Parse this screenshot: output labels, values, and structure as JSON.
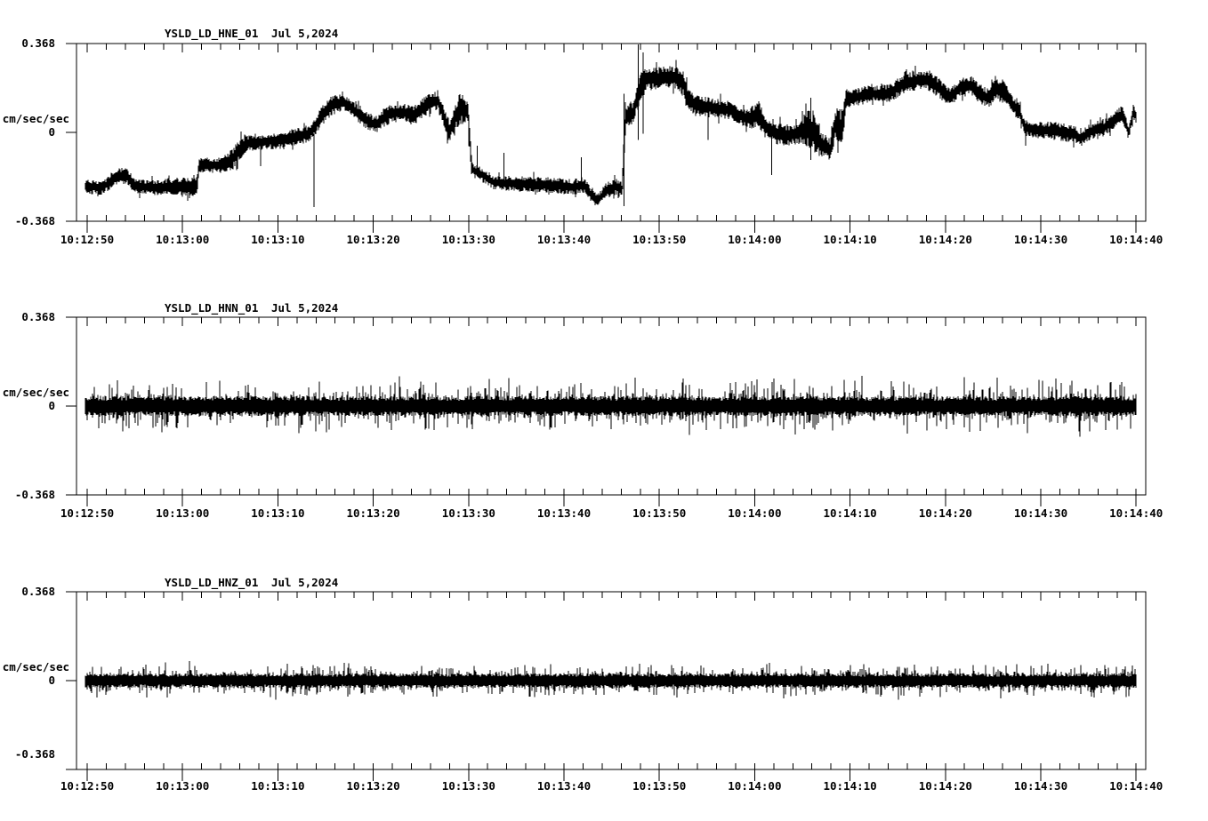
{
  "page": {
    "background": "#ffffff",
    "foreground": "#000000"
  },
  "panels": [
    {
      "station": "YSLD_LD_HNE_01",
      "date": "Jul 5,2024",
      "y_axis": {
        "label": "cm/sec/sec",
        "max_label": "0.368",
        "zero_label": "0",
        "min_label": "-0.368"
      },
      "x_ticks": [
        "10:12:50",
        "10:13:00",
        "10:13:10",
        "10:13:20",
        "10:13:30",
        "10:13:40",
        "10:13:50",
        "10:14:00",
        "10:14:10",
        "10:14:20",
        "10:14:30",
        "10:14:40"
      ]
    },
    {
      "station": "YSLD_LD_HNN_01",
      "date": "Jul 5,2024",
      "y_axis": {
        "label": "cm/sec/sec",
        "max_label": "0.368",
        "zero_label": "0",
        "min_label": "-0.368"
      },
      "x_ticks": [
        "10:12:50",
        "10:13:00",
        "10:13:10",
        "10:13:20",
        "10:13:30",
        "10:13:40",
        "10:13:50",
        "10:14:00",
        "10:14:10",
        "10:14:20",
        "10:14:30",
        "10:14:40"
      ]
    },
    {
      "station": "YSLD_LD_HNZ_01",
      "date": "Jul 5,2024",
      "y_axis": {
        "label": "cm/sec/sec",
        "max_label": "0.368",
        "zero_label": "0",
        "min_label": "-0.368"
      },
      "x_ticks": [
        "10:12:50",
        "10:13:00",
        "10:13:10",
        "10:13:20",
        "10:13:30",
        "10:13:40",
        "10:13:50",
        "10:14:00",
        "10:14:10",
        "10:14:20",
        "10:14:30",
        "10:14:40"
      ]
    }
  ],
  "chart_data": [
    {
      "type": "line",
      "subtype": "seismogram-acceleration",
      "title": "YSLD_LD_HNE_01",
      "date": "Jul 5,2024",
      "ylabel": "cm/sec/sec",
      "units": "cm/sec/sec",
      "ylim": [
        -0.368,
        0.368
      ],
      "x_start_label": "10:12:50",
      "x_end_label": "10:14:40",
      "x_duration_s": 110,
      "x_major_tick_s": 10,
      "x_minor_tick_s": 2,
      "x_tick_labels": [
        "10:12:50",
        "10:13:00",
        "10:13:10",
        "10:13:20",
        "10:13:30",
        "10:13:40",
        "10:13:50",
        "10:14:00",
        "10:14:10",
        "10:14:20",
        "10:14:30",
        "10:14:40"
      ],
      "envelope": [
        [
          -0.2,
          -0.223,
          0.033
        ],
        [
          1.6,
          -0.23,
          0.029
        ],
        [
          3.0,
          -0.183,
          0.036
        ],
        [
          4.1,
          -0.176,
          0.036
        ],
        [
          5.0,
          -0.223,
          0.029
        ],
        [
          6.9,
          -0.23,
          0.033
        ],
        [
          9.0,
          -0.227,
          0.036
        ],
        [
          10.9,
          -0.223,
          0.047
        ],
        [
          11.5,
          -0.216,
          0.044
        ],
        [
          11.7,
          -0.136,
          0.029
        ],
        [
          14.2,
          -0.136,
          0.033
        ],
        [
          15.3,
          -0.107,
          0.044
        ],
        [
          16.2,
          -0.06,
          0.044
        ],
        [
          17.2,
          -0.042,
          0.036
        ],
        [
          18.8,
          -0.038,
          0.033
        ],
        [
          20.7,
          -0.031,
          0.036
        ],
        [
          22.1,
          -0.016,
          0.036
        ],
        [
          23.3,
          -0.005,
          0.036
        ],
        [
          24.6,
          0.067,
          0.044
        ],
        [
          25.8,
          0.118,
          0.04
        ],
        [
          26.9,
          0.125,
          0.036
        ],
        [
          28.0,
          0.092,
          0.036
        ],
        [
          29.1,
          0.056,
          0.036
        ],
        [
          30.2,
          0.031,
          0.036
        ],
        [
          31.5,
          0.074,
          0.044
        ],
        [
          33.0,
          0.085,
          0.036
        ],
        [
          34.3,
          0.071,
          0.044
        ],
        [
          35.7,
          0.118,
          0.044
        ],
        [
          36.8,
          0.132,
          0.044
        ],
        [
          38.0,
          0.002,
          0.051
        ],
        [
          39.0,
          0.096,
          0.065
        ],
        [
          39.9,
          0.089,
          0.058
        ],
        [
          40.3,
          -0.15,
          0.029
        ],
        [
          41.4,
          -0.176,
          0.029
        ],
        [
          42.7,
          -0.208,
          0.029
        ],
        [
          45.0,
          -0.212,
          0.033
        ],
        [
          47.3,
          -0.216,
          0.033
        ],
        [
          49.4,
          -0.219,
          0.033
        ],
        [
          50.7,
          -0.227,
          0.033
        ],
        [
          52.1,
          -0.219,
          0.036
        ],
        [
          53.0,
          -0.266,
          0.029
        ],
        [
          53.5,
          -0.281,
          0.029
        ],
        [
          54.5,
          -0.241,
          0.033
        ],
        [
          55.4,
          -0.223,
          0.036
        ],
        [
          56.1,
          -0.237,
          0.036
        ],
        [
          56.4,
          0.067,
          0.051
        ],
        [
          57.3,
          0.082,
          0.051
        ],
        [
          58.0,
          0.194,
          0.073
        ],
        [
          58.7,
          0.219,
          0.047
        ],
        [
          60.1,
          0.227,
          0.047
        ],
        [
          61.6,
          0.23,
          0.047
        ],
        [
          62.5,
          0.201,
          0.051
        ],
        [
          63.2,
          0.125,
          0.044
        ],
        [
          64.6,
          0.107,
          0.044
        ],
        [
          66.0,
          0.1,
          0.04
        ],
        [
          67.4,
          0.092,
          0.04
        ],
        [
          68.5,
          0.067,
          0.036
        ],
        [
          69.4,
          0.056,
          0.044
        ],
        [
          70.4,
          0.074,
          0.058
        ],
        [
          71.3,
          0.02,
          0.044
        ],
        [
          72.2,
          -0.005,
          0.047
        ],
        [
          73.3,
          -0.013,
          0.044
        ],
        [
          74.4,
          -0.005,
          0.047
        ],
        [
          75.6,
          0.02,
          0.08
        ],
        [
          76.3,
          -0.005,
          0.094
        ],
        [
          77.1,
          -0.053,
          0.054
        ],
        [
          77.9,
          -0.071,
          0.044
        ],
        [
          78.5,
          0.038,
          0.065
        ],
        [
          79.2,
          0.013,
          0.087
        ],
        [
          79.6,
          0.14,
          0.04
        ],
        [
          80.9,
          0.15,
          0.036
        ],
        [
          82.3,
          0.161,
          0.036
        ],
        [
          84.1,
          0.158,
          0.04
        ],
        [
          85.3,
          0.194,
          0.04
        ],
        [
          86.6,
          0.212,
          0.044
        ],
        [
          87.7,
          0.219,
          0.044
        ],
        [
          88.6,
          0.209,
          0.044
        ],
        [
          89.6,
          0.176,
          0.044
        ],
        [
          90.5,
          0.143,
          0.036
        ],
        [
          91.6,
          0.19,
          0.044
        ],
        [
          92.7,
          0.194,
          0.044
        ],
        [
          93.8,
          0.154,
          0.04
        ],
        [
          94.6,
          0.14,
          0.04
        ],
        [
          95.3,
          0.187,
          0.054
        ],
        [
          96.1,
          0.168,
          0.047
        ],
        [
          97.0,
          0.118,
          0.04
        ],
        [
          97.8,
          0.082,
          0.036
        ],
        [
          98.3,
          0.02,
          0.033
        ],
        [
          99.3,
          0.009,
          0.036
        ],
        [
          100.6,
          0.009,
          0.036
        ],
        [
          102.1,
          0.002,
          0.04
        ],
        [
          103.4,
          -0.005,
          0.036
        ],
        [
          104.2,
          -0.027,
          0.033
        ],
        [
          105.3,
          0.005,
          0.036
        ],
        [
          106.5,
          0.016,
          0.036
        ],
        [
          107.8,
          0.053,
          0.036
        ],
        [
          108.6,
          0.078,
          0.036
        ],
        [
          109.2,
          -0.002,
          0.029
        ],
        [
          109.7,
          0.082,
          0.033
        ],
        [
          110.1,
          0.062,
          0.033
        ]
      ],
      "spikes": [
        [
          18.2,
          -0.14,
          -0.031
        ],
        [
          23.8,
          -0.31,
          -0.005
        ],
        [
          40.9,
          -0.18,
          -0.056
        ],
        [
          43.7,
          -0.21,
          -0.085
        ],
        [
          51.8,
          -0.22,
          -0.103
        ],
        [
          56.3,
          -0.306,
          0.161
        ],
        [
          57.8,
          -0.031,
          0.364
        ],
        [
          58.3,
          -0.005,
          0.332
        ],
        [
          65.1,
          -0.031,
          0.107
        ],
        [
          71.8,
          -0.176,
          0.02
        ],
        [
          75.9,
          -0.114,
          0.143
        ],
        [
          98.4,
          -0.056,
          0.02
        ]
      ]
    },
    {
      "type": "line",
      "subtype": "seismogram-acceleration",
      "title": "YSLD_LD_HNN_01",
      "date": "Jul 5,2024",
      "ylabel": "cm/sec/sec",
      "units": "cm/sec/sec",
      "ylim": [
        -0.368,
        0.368
      ],
      "x_start_label": "10:12:50",
      "x_end_label": "10:14:40",
      "x_duration_s": 110,
      "x_major_tick_s": 10,
      "x_minor_tick_s": 2,
      "x_tick_labels": [
        "10:12:50",
        "10:13:00",
        "10:13:10",
        "10:13:20",
        "10:13:30",
        "10:13:40",
        "10:13:50",
        "10:14:00",
        "10:14:10",
        "10:14:20",
        "10:14:30",
        "10:14:40"
      ],
      "noise": {
        "mean": 0.0,
        "core_halfwidth": 0.041,
        "max_halfwidth": 0.135
      }
    },
    {
      "type": "line",
      "subtype": "seismogram-acceleration",
      "title": "YSLD_LD_HNZ_01",
      "date": "Jul 5,2024",
      "ylabel": "cm/sec/sec",
      "units": "cm/sec/sec",
      "ylim": [
        -0.368,
        0.368
      ],
      "x_start_label": "10:12:50",
      "x_end_label": "10:14:40",
      "x_duration_s": 110,
      "x_major_tick_s": 10,
      "x_minor_tick_s": 2,
      "x_tick_labels": [
        "10:12:50",
        "10:13:00",
        "10:13:10",
        "10:13:20",
        "10:13:30",
        "10:13:40",
        "10:13:50",
        "10:14:00",
        "10:14:10",
        "10:14:20",
        "10:14:30",
        "10:14:40"
      ],
      "noise": {
        "mean": 0.0,
        "core_halfwidth": 0.03,
        "max_halfwidth": 0.085
      }
    }
  ]
}
